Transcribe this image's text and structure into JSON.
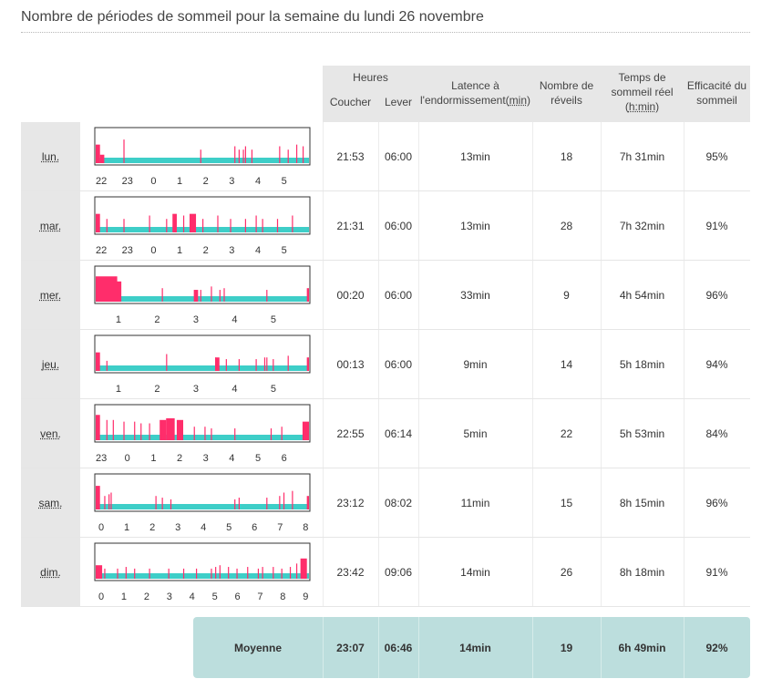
{
  "page": {
    "title": "Nombre de périodes de sommeil pour la semaine du lundi 26 novembre"
  },
  "colors": {
    "sleep": "#3ecec8",
    "wake": "#ff2d6b",
    "header_bg": "#e7e7e7",
    "average_bg": "#bcdedd"
  },
  "table": {
    "headers": {
      "heures": "Heures",
      "coucher": "Coucher",
      "lever": "Lever",
      "latence_line1": "Latence à",
      "latence_line2_a": "l'endormissement(",
      "latence_line2_u": "min",
      "latence_line2_b": ")",
      "reveils_line1": "Nombre de",
      "reveils_line2": "réveils",
      "temps_line1": "Temps de",
      "temps_line2": "sommeil réel",
      "temps_line3_a": "(",
      "temps_line3_u": "h:min",
      "temps_line3_b": ")",
      "efficacite_line1": "Efficacité du",
      "efficacite_line2": "sommeil"
    },
    "rows": [
      {
        "day": "lun.",
        "coucher": "21:53",
        "lever": "06:00",
        "latence": "13min",
        "reveils": "18",
        "temps": "7h 31min",
        "efficacite": "95%",
        "ticks": [
          "22",
          "23",
          "0",
          "1",
          "2",
          "3",
          "4",
          "5"
        ]
      },
      {
        "day": "mar.",
        "coucher": "21:31",
        "lever": "06:00",
        "latence": "13min",
        "reveils": "28",
        "temps": "7h 32min",
        "efficacite": "91%",
        "ticks": [
          "22",
          "23",
          "0",
          "1",
          "2",
          "3",
          "4",
          "5"
        ]
      },
      {
        "day": "mer.",
        "coucher": "00:20",
        "lever": "06:00",
        "latence": "33min",
        "reveils": "9",
        "temps": "4h 54min",
        "efficacite": "96%",
        "ticks": [
          "1",
          "2",
          "3",
          "4",
          "5"
        ]
      },
      {
        "day": "jeu.",
        "coucher": "00:13",
        "lever": "06:00",
        "latence": "9min",
        "reveils": "14",
        "temps": "5h 18min",
        "efficacite": "94%",
        "ticks": [
          "1",
          "2",
          "3",
          "4",
          "5"
        ]
      },
      {
        "day": "ven.",
        "coucher": "22:55",
        "lever": "06:14",
        "latence": "5min",
        "reveils": "22",
        "temps": "5h 53min",
        "efficacite": "84%",
        "ticks": [
          "23",
          "0",
          "1",
          "2",
          "3",
          "4",
          "5",
          "6"
        ]
      },
      {
        "day": "sam.",
        "coucher": "23:12",
        "lever": "08:02",
        "latence": "11min",
        "reveils": "15",
        "temps": "8h 15min",
        "efficacite": "96%",
        "ticks": [
          "0",
          "1",
          "2",
          "3",
          "4",
          "5",
          "6",
          "7",
          "8"
        ]
      },
      {
        "day": "dim.",
        "coucher": "23:42",
        "lever": "09:06",
        "latence": "14min",
        "reveils": "26",
        "temps": "8h 18min",
        "efficacite": "91%",
        "ticks": [
          "0",
          "1",
          "2",
          "3",
          "4",
          "5",
          "6",
          "7",
          "8",
          "9"
        ]
      }
    ],
    "average": {
      "label": "Moyenne",
      "coucher": "23:07",
      "lever": "06:46",
      "latence": "14min",
      "reveils": "19",
      "temps": "6h 49min",
      "efficacite": "92%"
    }
  }
}
